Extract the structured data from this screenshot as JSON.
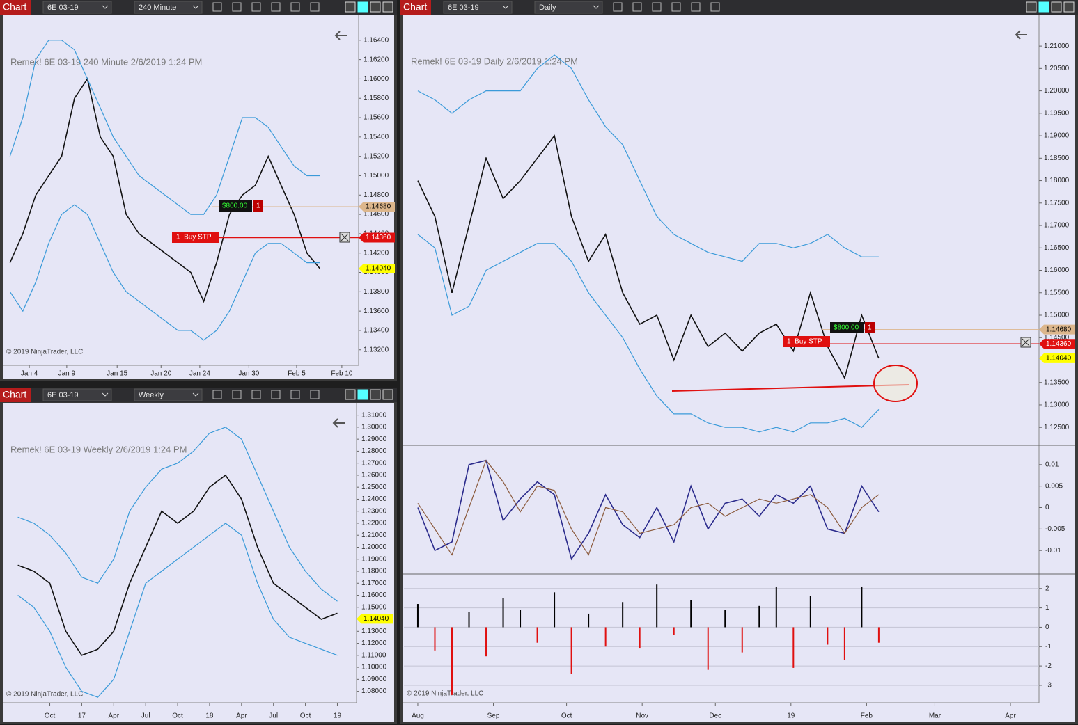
{
  "windows": [
    {
      "toolbar": {
        "logo": "Chart",
        "instrument": "6E 03-19",
        "interval": "240 Minute"
      },
      "chart": {
        "type": "line",
        "title": "Remek!  6E 03-19  240 Minute  2/6/2019 1:24 PM",
        "copyright": "© 2019 NinjaTrader, LLC",
        "xlim": [
          -0.5,
          27
        ],
        "xticks": [
          {
            "value": 1.5,
            "label": "Jan 4"
          },
          {
            "value": 4.4,
            "label": "Jan 9"
          },
          {
            "value": 8.3,
            "label": "Jan 15"
          },
          {
            "value": 11.7,
            "label": "Jan 20"
          },
          {
            "value": 14.7,
            "label": "Jan 24"
          },
          {
            "value": 18.5,
            "label": "Jan 30"
          },
          {
            "value": 22.2,
            "label": "Feb 5"
          },
          {
            "value": 25.7,
            "label": "Feb 10"
          }
        ],
        "ylim": [
          1.1304,
          1.166
        ],
        "yticks": [
          {
            "value": 1.164,
            "label": "1.16400"
          },
          {
            "value": 1.162,
            "label": "1.16200"
          },
          {
            "value": 1.16,
            "label": "1.16000"
          },
          {
            "value": 1.158,
            "label": "1.15800"
          },
          {
            "value": 1.156,
            "label": "1.15600"
          },
          {
            "value": 1.154,
            "label": "1.15400"
          },
          {
            "value": 1.152,
            "label": "1.15200"
          },
          {
            "value": 1.15,
            "label": "1.15000"
          },
          {
            "value": 1.148,
            "label": "1.14800"
          },
          {
            "value": 1.146,
            "label": "1.14600"
          },
          {
            "value": 1.144,
            "label": "1.14400"
          },
          {
            "value": 1.142,
            "label": "1.14200"
          },
          {
            "value": 1.14,
            "label": "1.14000"
          },
          {
            "value": 1.138,
            "label": "1.13800"
          },
          {
            "value": 1.136,
            "label": "1.13600"
          },
          {
            "value": 1.134,
            "label": "1.13400"
          },
          {
            "value": 1.132,
            "label": "1.13200"
          }
        ],
        "x": [
          0,
          1,
          2,
          3,
          4,
          5,
          6,
          7,
          8,
          9,
          10,
          11,
          12,
          13,
          14,
          15,
          16,
          17,
          18,
          19,
          20,
          21,
          22,
          23,
          24
        ],
        "series": [
          {
            "color": "#111111",
            "values": [
              1.141,
              1.144,
              1.148,
              1.15,
              1.152,
              1.158,
              1.16,
              1.154,
              1.152,
              1.146,
              1.144,
              1.143,
              1.142,
              1.141,
              1.14,
              1.137,
              1.141,
              1.146,
              1.148,
              1.149,
              1.152,
              1.149,
              1.146,
              1.142,
              1.1404
            ]
          },
          {
            "color": "#3a9ad9",
            "values": [
              1.152,
              1.156,
              1.162,
              1.164,
              1.164,
              1.163,
              1.16,
              1.157,
              1.154,
              1.152,
              1.15,
              1.149,
              1.148,
              1.147,
              1.146,
              1.146,
              1.148,
              1.152,
              1.156,
              1.156,
              1.155,
              1.153,
              1.151,
              1.15,
              1.15
            ]
          },
          {
            "color": "#3a9ad9",
            "values": [
              1.138,
              1.136,
              1.139,
              1.143,
              1.146,
              1.147,
              1.146,
              1.143,
              1.14,
              1.138,
              1.137,
              1.136,
              1.135,
              1.134,
              1.134,
              1.133,
              1.134,
              1.136,
              1.139,
              1.142,
              1.143,
              1.143,
              1.142,
              1.141,
              1.141
            ]
          }
        ],
        "markers": [
          {
            "value": 1.1468,
            "label": "1.14680",
            "color": "#dcb68c",
            "show_line": true
          },
          {
            "value": 1.1436,
            "label": "1.14360",
            "color": "#e01010",
            "show_line": true
          },
          {
            "value": 1.1404,
            "label": "1.14040",
            "color": "#ffff00",
            "show_line": false
          }
        ],
        "orders": {
          "pnl": "$800.00",
          "qty": "1",
          "stop": "1  Buy STP"
        }
      }
    },
    {
      "toolbar": {
        "logo": "Chart",
        "instrument": "6E 03-19",
        "interval": "Weekly"
      },
      "chart": {
        "type": "line",
        "title": "Remek!  6E 03-19  Weekly  2/6/2019 1:24 PM",
        "copyright": "© 2019 NinjaTrader, LLC",
        "xlim": [
          -1.45,
          9.6
        ],
        "xticks": [
          {
            "value": 0,
            "label": "Oct"
          },
          {
            "value": 1,
            "label": "17"
          },
          {
            "value": 2,
            "label": "Apr"
          },
          {
            "value": 3,
            "label": "Jul"
          },
          {
            "value": 4,
            "label": "Oct"
          },
          {
            "value": 5,
            "label": "18"
          },
          {
            "value": 6,
            "label": "Apr"
          },
          {
            "value": 7,
            "label": "Jul"
          },
          {
            "value": 8,
            "label": "Oct"
          },
          {
            "value": 9,
            "label": "19"
          }
        ],
        "ylim": [
          1.0705,
          1.315
        ],
        "yticks": [
          {
            "value": 1.31,
            "label": "1.31000"
          },
          {
            "value": 1.3,
            "label": "1.30000"
          },
          {
            "value": 1.29,
            "label": "1.29000"
          },
          {
            "value": 1.28,
            "label": "1.28000"
          },
          {
            "value": 1.27,
            "label": "1.27000"
          },
          {
            "value": 1.26,
            "label": "1.26000"
          },
          {
            "value": 1.25,
            "label": "1.25000"
          },
          {
            "value": 1.24,
            "label": "1.24000"
          },
          {
            "value": 1.23,
            "label": "1.23000"
          },
          {
            "value": 1.22,
            "label": "1.22000"
          },
          {
            "value": 1.21,
            "label": "1.21000"
          },
          {
            "value": 1.2,
            "label": "1.20000"
          },
          {
            "value": 1.19,
            "label": "1.19000"
          },
          {
            "value": 1.18,
            "label": "1.18000"
          },
          {
            "value": 1.17,
            "label": "1.17000"
          },
          {
            "value": 1.16,
            "label": "1.16000"
          },
          {
            "value": 1.15,
            "label": "1.15000"
          },
          {
            "value": 1.14,
            "label": "1.14000"
          },
          {
            "value": 1.13,
            "label": "1.13000"
          },
          {
            "value": 1.12,
            "label": "1.12000"
          },
          {
            "value": 1.11,
            "label": "1.11000"
          },
          {
            "value": 1.1,
            "label": "1.10000"
          },
          {
            "value": 1.09,
            "label": "1.09000"
          },
          {
            "value": 1.08,
            "label": "1.08000"
          }
        ],
        "x": [
          -1,
          -0.5,
          0,
          0.5,
          1,
          1.5,
          2,
          2.5,
          3,
          3.5,
          4,
          4.5,
          5,
          5.5,
          6,
          6.5,
          7,
          7.5,
          8,
          8.5,
          9
        ],
        "series": [
          {
            "color": "#111111",
            "values": [
              1.185,
              1.18,
              1.17,
              1.13,
              1.11,
              1.115,
              1.13,
              1.17,
              1.2,
              1.23,
              1.22,
              1.23,
              1.25,
              1.26,
              1.24,
              1.2,
              1.17,
              1.16,
              1.15,
              1.14,
              1.145
            ]
          },
          {
            "color": "#3a9ad9",
            "values": [
              1.225,
              1.22,
              1.21,
              1.195,
              1.175,
              1.17,
              1.19,
              1.23,
              1.25,
              1.265,
              1.27,
              1.28,
              1.295,
              1.3,
              1.29,
              1.26,
              1.23,
              1.2,
              1.18,
              1.165,
              1.155
            ]
          },
          {
            "color": "#3a9ad9",
            "values": [
              1.16,
              1.15,
              1.13,
              1.1,
              1.08,
              1.075,
              1.09,
              1.13,
              1.17,
              1.18,
              1.19,
              1.2,
              1.21,
              1.22,
              1.21,
              1.17,
              1.14,
              1.125,
              1.12,
              1.115,
              1.11
            ]
          }
        ],
        "markers": [
          {
            "value": 1.1404,
            "label": "1.14040",
            "color": "#ffff00",
            "show_line": false
          }
        ]
      }
    },
    {
      "toolbar": {
        "logo": "Chart",
        "instrument": "6E 03-19",
        "interval": "Daily"
      },
      "chart": {
        "type": "line",
        "title": "Remek!  6E 03-19  Daily  2/6/2019 1:24 PM",
        "copyright": "© 2019 NinjaTrader, LLC",
        "xlim": [
          -5.7,
          254.7
        ],
        "xticks": [
          {
            "value": 0,
            "label": "Aug"
          },
          {
            "value": 31,
            "label": "Sep"
          },
          {
            "value": 61,
            "label": "Oct"
          },
          {
            "value": 92,
            "label": "Nov"
          },
          {
            "value": 122,
            "label": "Dec"
          },
          {
            "value": 153,
            "label": "19"
          },
          {
            "value": 184,
            "label": "Feb"
          },
          {
            "value": 212,
            "label": "Mar"
          },
          {
            "value": 243,
            "label": "Apr"
          }
        ],
        "ylim": [
          1.121,
          1.2156
        ],
        "yticks": [
          {
            "value": 1.21,
            "label": "1.21000"
          },
          {
            "value": 1.205,
            "label": "1.20500"
          },
          {
            "value": 1.2,
            "label": "1.20000"
          },
          {
            "value": 1.195,
            "label": "1.19500"
          },
          {
            "value": 1.19,
            "label": "1.19000"
          },
          {
            "value": 1.185,
            "label": "1.18500"
          },
          {
            "value": 1.18,
            "label": "1.18000"
          },
          {
            "value": 1.175,
            "label": "1.17500"
          },
          {
            "value": 1.17,
            "label": "1.17000"
          },
          {
            "value": 1.165,
            "label": "1.16500"
          },
          {
            "value": 1.16,
            "label": "1.16000"
          },
          {
            "value": 1.155,
            "label": "1.15500"
          },
          {
            "value": 1.15,
            "label": "1.15000"
          },
          {
            "value": 1.145,
            "label": "1.14500"
          },
          {
            "value": 1.14,
            "label": "1.14000"
          },
          {
            "value": 1.135,
            "label": "1.13500"
          },
          {
            "value": 1.13,
            "label": "1.13000"
          },
          {
            "value": 1.125,
            "label": "1.12500"
          }
        ],
        "x": [
          0,
          7,
          14,
          21,
          28,
          35,
          42,
          49,
          56,
          63,
          70,
          77,
          84,
          91,
          98,
          105,
          112,
          119,
          126,
          133,
          140,
          147,
          154,
          161,
          168,
          175,
          182,
          189
        ],
        "series": [
          {
            "color": "#111111",
            "values": [
              1.18,
              1.172,
              1.155,
              1.17,
              1.185,
              1.176,
              1.18,
              1.185,
              1.19,
              1.172,
              1.162,
              1.168,
              1.155,
              1.148,
              1.15,
              1.14,
              1.15,
              1.143,
              1.146,
              1.142,
              1.146,
              1.148,
              1.142,
              1.155,
              1.143,
              1.136,
              1.15,
              1.1404
            ]
          },
          {
            "color": "#3a9ad9",
            "values": [
              1.2,
              1.198,
              1.195,
              1.198,
              1.2,
              1.2,
              1.2,
              1.205,
              1.208,
              1.205,
              1.198,
              1.192,
              1.188,
              1.18,
              1.172,
              1.168,
              1.166,
              1.164,
              1.163,
              1.162,
              1.166,
              1.166,
              1.165,
              1.166,
              1.168,
              1.165,
              1.163,
              1.163
            ]
          },
          {
            "color": "#3a9ad9",
            "values": [
              1.168,
              1.165,
              1.15,
              1.152,
              1.16,
              1.162,
              1.164,
              1.166,
              1.166,
              1.162,
              1.155,
              1.15,
              1.145,
              1.138,
              1.132,
              1.128,
              1.128,
              1.126,
              1.125,
              1.125,
              1.124,
              1.125,
              1.124,
              1.126,
              1.126,
              1.127,
              1.125,
              1.129
            ]
          }
        ],
        "markers": [
          {
            "value": 1.1468,
            "label": "1.14680",
            "color": "#dcb68c",
            "show_line": true
          },
          {
            "value": 1.1436,
            "label": "1.14360",
            "color": "#e01010",
            "show_line": true
          },
          {
            "value": 1.1404,
            "label": "1.14040",
            "color": "#ffff00",
            "show_line": false
          }
        ],
        "orders": {
          "pnl": "$800.00",
          "qty": "1",
          "stop": "1  Buy STP"
        },
        "indicators": [
          {
            "type": "line",
            "ylim": [
              -0.01548,
              0.01435
            ],
            "yticks": [
              0.01,
              0.005,
              0,
              -0.005,
              -0.01
            ],
            "series": [
              {
                "color": "#2b2b8c",
                "values": [
                  0,
                  -0.01,
                  -0.008,
                  0.01,
                  0.011,
                  -0.003,
                  0.002,
                  0.006,
                  0.003,
                  -0.012,
                  -0.006,
                  0.003,
                  -0.004,
                  -0.007,
                  0,
                  -0.008,
                  0.005,
                  -0.005,
                  0.001,
                  0.002,
                  -0.002,
                  0.003,
                  0.001,
                  0.005,
                  -0.005,
                  -0.006,
                  0.005,
                  -0.001
                ]
              },
              {
                "color": "#8b5a3c",
                "values": [
                  0.001,
                  -0.005,
                  -0.011,
                  0,
                  0.011,
                  0.006,
                  -0.001,
                  0.005,
                  0.004,
                  -0.005,
                  -0.011,
                  0,
                  -0.001,
                  -0.006,
                  -0.005,
                  -0.004,
                  0,
                  0.001,
                  -0.002,
                  0,
                  0.002,
                  0.001,
                  0.002,
                  0.003,
                  0,
                  -0.006,
                  0,
                  0.003
                ]
              }
            ]
          },
          {
            "type": "bar",
            "ylim": [
              -3.9,
              2.71
            ],
            "yticks": [
              2,
              1,
              0,
              -1,
              -2,
              -3
            ],
            "up_color": "#000000",
            "down_color": "#e01010",
            "values": [
              1.2,
              -1.2,
              -3.5,
              0.8,
              -1.5,
              1.5,
              0.9,
              -0.8,
              1.8,
              -2.4,
              0.7,
              -1,
              1.3,
              -1.1,
              2.2,
              -0.4,
              1.4,
              -2.2,
              0.9,
              -1.3,
              1.1,
              2.1,
              -2.1,
              1.6,
              -0.9,
              -1.7,
              2.1,
              -0.8
            ]
          }
        ]
      }
    }
  ]
}
